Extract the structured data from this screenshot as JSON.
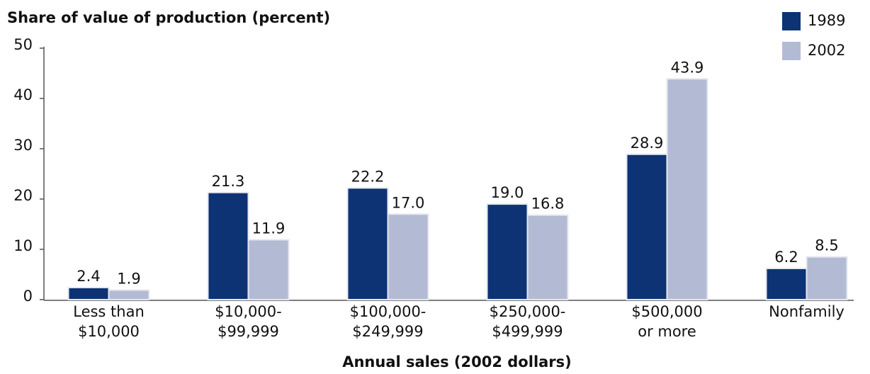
{
  "chart_data": {
    "type": "bar",
    "title": "Share of value of production (percent)",
    "x_label": "Annual sales (2002 dollars)",
    "categories": [
      [
        "Less than",
        "$10,000"
      ],
      [
        "$10,000-",
        "$99,999"
      ],
      [
        "$100,000-",
        "$249,999"
      ],
      [
        "$250,000-",
        "$499,999"
      ],
      [
        "$500,000",
        "or more"
      ],
      [
        "Nonfamily"
      ]
    ],
    "series": [
      {
        "name": "1989",
        "color": "#0d3375",
        "values": [
          2.4,
          21.3,
          22.2,
          19,
          28.9,
          6.2
        ],
        "value_labels": [
          "2.4",
          "21.3",
          "22.2",
          "19.0",
          "28.9",
          "6.2"
        ]
      },
      {
        "name": "2002",
        "color": "#b3bbd4",
        "values": [
          1.9,
          11.9,
          17,
          16.8,
          43.9,
          8.5
        ],
        "value_labels": [
          "1.9",
          "11.9",
          "17.0",
          "16.8",
          "43.9",
          "8.5"
        ]
      }
    ],
    "ylim": [
      0,
      50
    ],
    "yticks": [
      0,
      10,
      20,
      30,
      40,
      50
    ],
    "grid": false,
    "legend": "top-right"
  }
}
